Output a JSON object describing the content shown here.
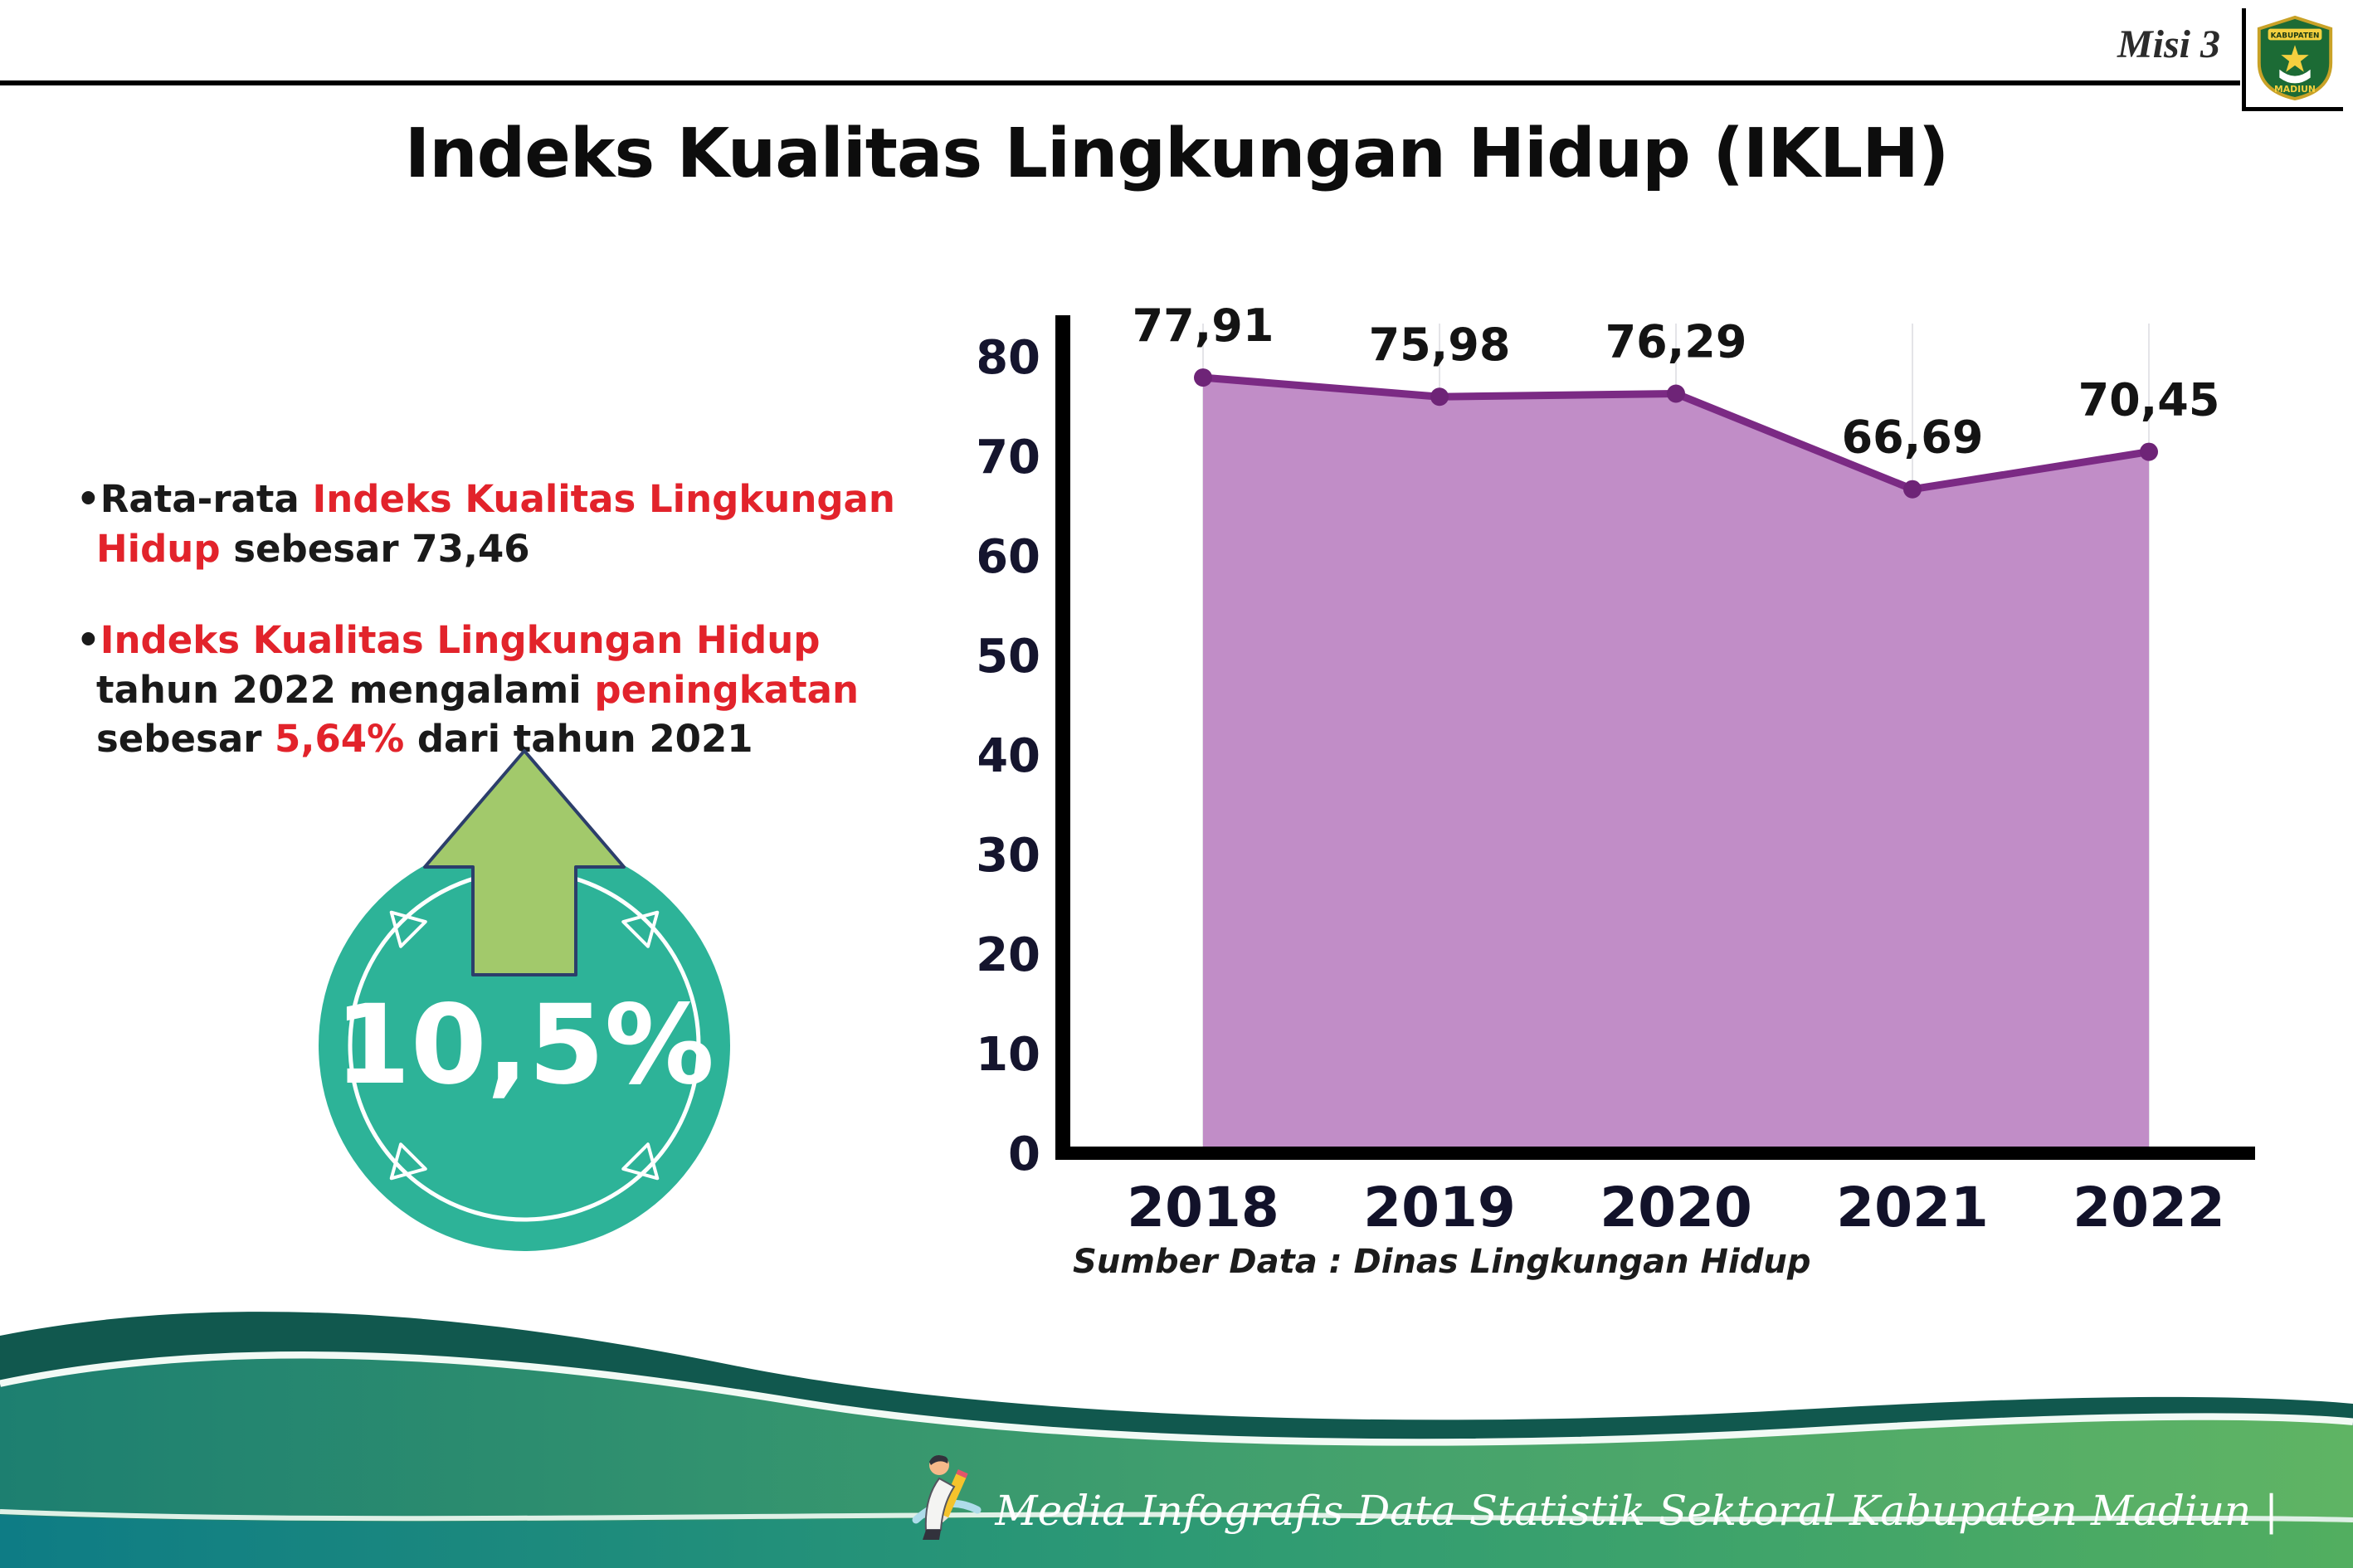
{
  "header": {
    "misi": "Misi 3",
    "title": "Indeks Kualitas Lingkungan Hidup (IKLH)",
    "logo": {
      "top": "KABUPATEN",
      "bottom": "MADIUN"
    }
  },
  "bullets": [
    {
      "parts": [
        {
          "text": "Rata-rata ",
          "red": false
        },
        {
          "text": "Indeks Kualitas Lingkungan Hidup",
          "red": true
        },
        {
          "text": " sebesar 73,46",
          "red": false
        }
      ]
    },
    {
      "parts": [
        {
          "text": "Indeks Kualitas Lingkungan Hidup",
          "red": true
        },
        {
          "text": " tahun 2022 mengalami ",
          "red": false
        },
        {
          "text": "peningkatan",
          "red": true
        },
        {
          "text": " sebesar ",
          "red": false
        },
        {
          "text": "5,64%",
          "red": true
        },
        {
          "text": " dari tahun 2021",
          "red": false
        }
      ]
    }
  ],
  "badge": {
    "value": "10,5%"
  },
  "chart_data": {
    "type": "area",
    "title": "Indeks Kualitas Lingkungan Hidup (IKLH)",
    "categories": [
      "2018",
      "2019",
      "2020",
      "2021",
      "2022"
    ],
    "values": [
      77.91,
      75.98,
      76.29,
      66.69,
      70.45
    ],
    "value_labels": [
      "77,91",
      "75,98",
      "76,29",
      "66,69",
      "70,45"
    ],
    "xlabel": "",
    "ylabel": "",
    "ylim": [
      0,
      80
    ],
    "yticks": [
      0,
      10,
      20,
      30,
      40,
      50,
      60,
      70,
      80
    ],
    "grid": "faint-vertical",
    "legend": "none",
    "line_color": "#7b2a84",
    "fill_color": "#c18dc7",
    "point_color": "#6e2477",
    "source": "Sumber Data : Dinas Lingkungan Hidup"
  },
  "footer": {
    "credit": "Media Infografis Data Statistik Sektoral Kabupaten Madiun |"
  },
  "colors": {
    "accent_red": "#e2232b",
    "badge_teal": "#2db398",
    "arrow_green": "#a2c96b",
    "footer_dark_teal": "#11584e",
    "footer_green": "#4aa56c"
  }
}
